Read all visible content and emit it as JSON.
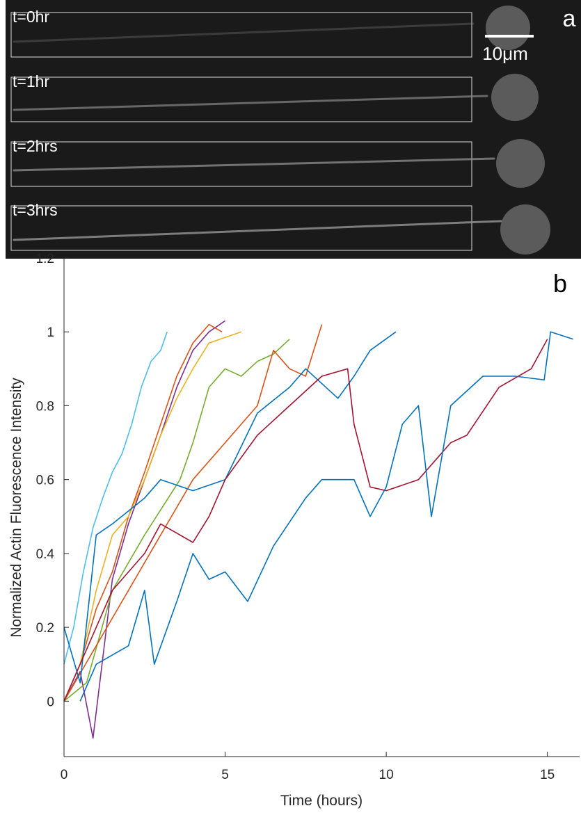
{
  "panel_a": {
    "label": "a",
    "scale_bar": "10μm",
    "frames": [
      "t=0hr",
      "t=1hr",
      "t=2hrs",
      "t=3hrs"
    ]
  },
  "chart_data": {
    "type": "line",
    "panel_label": "b",
    "x_label": "Time (hours)",
    "y_label": "Normalized Actin Fluorescence Intensity",
    "xlim": [
      0,
      16
    ],
    "ylim": [
      -0.15,
      1.2
    ],
    "xticks": [
      0,
      5,
      10,
      15
    ],
    "yticks": [
      0,
      0.2,
      0.4,
      0.6,
      0.8,
      1,
      1.2
    ],
    "series": [
      {
        "color": "#4dbeee",
        "x": [
          0,
          0.3,
          0.6,
          0.9,
          1.2,
          1.5,
          1.8,
          2.1,
          2.4,
          2.7,
          3.0,
          3.2
        ],
        "values": [
          0.1,
          0.2,
          0.35,
          0.47,
          0.55,
          0.62,
          0.67,
          0.75,
          0.85,
          0.92,
          0.95,
          1.0
        ]
      },
      {
        "color": "#7e2f8e",
        "x": [
          0,
          0.5,
          0.9,
          1.5,
          2,
          2.5,
          3,
          3.5,
          4,
          4.5,
          5
        ],
        "values": [
          0,
          0.08,
          -0.1,
          0.33,
          0.48,
          0.6,
          0.72,
          0.85,
          0.95,
          1.0,
          1.03
        ]
      },
      {
        "color": "#d95319",
        "x": [
          0,
          0.5,
          1,
          1.5,
          2,
          2.5,
          3,
          3.5,
          4,
          4.5,
          4.9
        ],
        "values": [
          0,
          0.1,
          0.25,
          0.35,
          0.5,
          0.62,
          0.75,
          0.88,
          0.97,
          1.02,
          1.0
        ]
      },
      {
        "color": "#edb120",
        "x": [
          0,
          0.5,
          1,
          1.5,
          2,
          2.5,
          3,
          3.5,
          4,
          4.5,
          5.5
        ],
        "values": [
          0,
          0.1,
          0.3,
          0.45,
          0.5,
          0.6,
          0.72,
          0.82,
          0.9,
          0.97,
          1.0
        ]
      },
      {
        "color": "#77ac30",
        "x": [
          0,
          0.7,
          1.5,
          2.5,
          3.6,
          4,
          4.5,
          5,
          5.5,
          6,
          6.5,
          7
        ],
        "values": [
          0,
          0.05,
          0.3,
          0.45,
          0.6,
          0.7,
          0.85,
          0.9,
          0.88,
          0.92,
          0.94,
          0.98
        ]
      },
      {
        "color": "#d95319",
        "x": [
          0,
          1,
          2,
          3,
          4,
          5,
          6,
          6.5,
          7,
          7.5,
          8
        ],
        "values": [
          0,
          0.15,
          0.3,
          0.45,
          0.6,
          0.7,
          0.8,
          0.95,
          0.9,
          0.88,
          1.02
        ]
      },
      {
        "color": "#0072bd",
        "x": [
          0,
          0.5,
          1,
          1.5,
          2.5,
          3,
          4,
          5,
          6,
          7,
          7.5,
          8.5,
          9,
          9.5,
          10.3
        ],
        "values": [
          0.2,
          0.05,
          0.45,
          0.48,
          0.55,
          0.6,
          0.57,
          0.6,
          0.78,
          0.85,
          0.9,
          0.82,
          0.88,
          0.95,
          1.0
        ]
      },
      {
        "color": "#a2142f",
        "x": [
          0,
          1,
          1.5,
          2.5,
          3,
          4,
          4.5,
          5,
          6,
          7,
          8,
          8.8,
          9,
          9.5,
          10,
          11,
          12,
          12.5,
          13.5,
          14.5,
          15
        ],
        "values": [
          0,
          0.2,
          0.3,
          0.4,
          0.48,
          0.43,
          0.5,
          0.6,
          0.72,
          0.8,
          0.88,
          0.9,
          0.75,
          0.58,
          0.57,
          0.6,
          0.7,
          0.72,
          0.85,
          0.9,
          0.98
        ]
      },
      {
        "color": "#0072bd",
        "x": [
          0.5,
          1,
          2,
          2.5,
          2.8,
          3.5,
          4,
          4.5,
          5,
          5.7,
          6.5,
          7.5,
          8,
          9,
          9.5,
          10,
          10.5,
          11,
          11.4,
          12,
          13,
          14,
          14.9,
          15.1,
          15.8
        ],
        "values": [
          0,
          0.1,
          0.15,
          0.3,
          0.1,
          0.27,
          0.4,
          0.33,
          0.35,
          0.27,
          0.42,
          0.55,
          0.6,
          0.6,
          0.5,
          0.58,
          0.75,
          0.8,
          0.5,
          0.8,
          0.88,
          0.88,
          0.87,
          1.0,
          0.98
        ]
      }
    ]
  }
}
